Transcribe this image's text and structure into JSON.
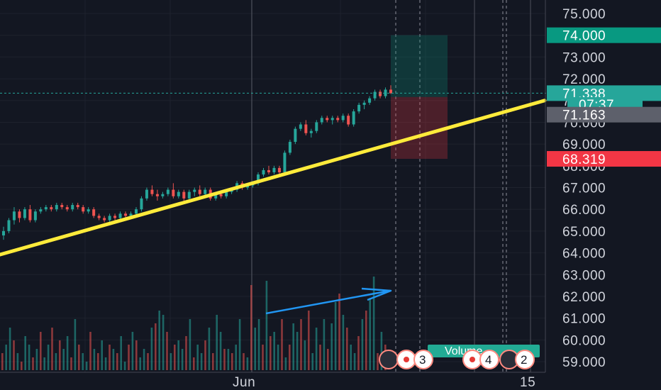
{
  "chart_data": {
    "type": "candlestick",
    "x_axis": {
      "labels": [
        "Jun",
        "15"
      ]
    },
    "y_axis": {
      "range": [
        58.6,
        75.6
      ],
      "ticks": [
        "59.000",
        "60.000",
        "61.000",
        "62.000",
        "63.000",
        "64.000",
        "65.000",
        "66.000",
        "67.000",
        "68.000",
        "69.000",
        "70.000",
        "71.000",
        "72.000",
        "73.000",
        "74.000",
        "75.000"
      ]
    },
    "price_tags": [
      {
        "label": "74.000",
        "value": 74.0,
        "color": "#089981"
      },
      {
        "label": "71.338",
        "value": 71.338,
        "color": "#26a69a"
      },
      {
        "label": "07:37",
        "value": 70.83,
        "color": "#26a69a"
      },
      {
        "label": "71.163",
        "value": 70.35,
        "color": "#5d606b"
      },
      {
        "label": "68.319",
        "value": 68.319,
        "color": "#f23645"
      }
    ],
    "current_price": 71.338,
    "candles_ohlc": [
      [
        64.8,
        65.2,
        64.6,
        65.0
      ],
      [
        65.0,
        65.6,
        64.9,
        65.5
      ],
      [
        65.5,
        66.1,
        65.3,
        65.9
      ],
      [
        65.9,
        66.0,
        65.4,
        65.6
      ],
      [
        65.6,
        66.1,
        65.5,
        66.0
      ],
      [
        66.0,
        66.2,
        65.4,
        65.5
      ],
      [
        65.5,
        66.0,
        65.4,
        65.9
      ],
      [
        65.9,
        66.1,
        65.8,
        66.0
      ],
      [
        66.0,
        66.2,
        65.9,
        66.1
      ],
      [
        66.1,
        66.2,
        65.9,
        66.0
      ],
      [
        66.0,
        66.3,
        65.9,
        66.2
      ],
      [
        66.2,
        66.3,
        66.0,
        66.1
      ],
      [
        66.1,
        66.2,
        65.9,
        66.0
      ],
      [
        66.0,
        66.3,
        65.9,
        66.2
      ],
      [
        66.2,
        66.3,
        66.0,
        66.1
      ],
      [
        66.1,
        66.2,
        65.8,
        65.9
      ],
      [
        65.9,
        66.1,
        65.8,
        66.0
      ],
      [
        66.0,
        66.1,
        65.6,
        65.7
      ],
      [
        65.7,
        65.8,
        65.5,
        65.6
      ],
      [
        65.6,
        65.7,
        65.4,
        65.5
      ],
      [
        65.5,
        65.8,
        65.4,
        65.7
      ],
      [
        65.7,
        65.8,
        65.5,
        65.6
      ],
      [
        65.6,
        65.9,
        65.5,
        65.8
      ],
      [
        65.8,
        65.9,
        65.6,
        65.7
      ],
      [
        65.7,
        65.9,
        65.6,
        65.8
      ],
      [
        65.8,
        66.1,
        65.7,
        66.0
      ],
      [
        66.0,
        66.6,
        65.9,
        66.5
      ],
      [
        66.5,
        67.0,
        66.4,
        66.9
      ],
      [
        66.9,
        67.1,
        66.6,
        66.7
      ],
      [
        66.7,
        66.9,
        66.4,
        66.6
      ],
      [
        66.6,
        66.8,
        66.5,
        66.7
      ],
      [
        66.7,
        67.0,
        66.6,
        66.9
      ],
      [
        66.9,
        67.2,
        66.5,
        66.6
      ],
      [
        66.6,
        66.9,
        66.5,
        66.8
      ],
      [
        66.8,
        66.9,
        66.4,
        66.5
      ],
      [
        66.5,
        66.9,
        66.4,
        66.8
      ],
      [
        66.8,
        67.0,
        66.6,
        66.9
      ],
      [
        66.9,
        67.1,
        66.6,
        66.7
      ],
      [
        66.7,
        67.0,
        66.6,
        66.9
      ],
      [
        66.9,
        67.0,
        66.4,
        66.5
      ],
      [
        66.5,
        66.8,
        66.4,
        66.7
      ],
      [
        66.7,
        66.8,
        66.5,
        66.6
      ],
      [
        66.6,
        66.9,
        66.5,
        66.8
      ],
      [
        66.8,
        67.0,
        66.7,
        66.9
      ],
      [
        66.9,
        67.3,
        66.8,
        67.2
      ],
      [
        67.2,
        67.3,
        66.9,
        67.0
      ],
      [
        67.0,
        67.2,
        66.9,
        67.1
      ],
      [
        67.1,
        67.3,
        67.0,
        67.2
      ],
      [
        67.2,
        67.7,
        67.1,
        67.6
      ],
      [
        67.6,
        67.9,
        67.5,
        67.8
      ],
      [
        67.8,
        68.0,
        67.6,
        67.7
      ],
      [
        67.7,
        68.0,
        67.6,
        67.9
      ],
      [
        67.9,
        68.0,
        67.6,
        67.7
      ],
      [
        67.7,
        68.7,
        67.6,
        68.6
      ],
      [
        68.6,
        69.2,
        68.5,
        69.1
      ],
      [
        69.1,
        69.8,
        69.0,
        69.7
      ],
      [
        69.7,
        70.0,
        69.6,
        69.9
      ],
      [
        69.9,
        70.1,
        69.4,
        69.5
      ],
      [
        69.5,
        69.7,
        69.3,
        69.6
      ],
      [
        69.6,
        70.1,
        69.5,
        70.0
      ],
      [
        70.0,
        70.3,
        69.9,
        70.2
      ],
      [
        70.2,
        70.3,
        70.0,
        70.1
      ],
      [
        70.1,
        70.3,
        69.9,
        70.2
      ],
      [
        70.2,
        70.3,
        70.0,
        70.1
      ],
      [
        70.1,
        70.4,
        70.0,
        70.3
      ],
      [
        70.3,
        70.4,
        69.8,
        69.9
      ],
      [
        69.9,
        70.6,
        69.8,
        70.5
      ],
      [
        70.5,
        70.9,
        70.4,
        70.8
      ],
      [
        70.8,
        71.0,
        70.6,
        70.9
      ],
      [
        70.9,
        71.2,
        70.8,
        71.1
      ],
      [
        71.1,
        71.5,
        71.0,
        71.4
      ],
      [
        71.4,
        71.5,
        71.1,
        71.2
      ],
      [
        71.2,
        71.6,
        71.1,
        71.5
      ],
      [
        71.5,
        71.7,
        71.3,
        71.338
      ]
    ],
    "volume": [
      4,
      6,
      10,
      7,
      4,
      2,
      8,
      6,
      3,
      5,
      9,
      3,
      6,
      10,
      4,
      7,
      5,
      8,
      3,
      12,
      6,
      4,
      2,
      9,
      5,
      4,
      7,
      3,
      6,
      5,
      4,
      8,
      2,
      6,
      9,
      7,
      3,
      5,
      4,
      10,
      11,
      14,
      13,
      9,
      4,
      6,
      7,
      5,
      8,
      12,
      3,
      6,
      4,
      7,
      10,
      4,
      13,
      9,
      5,
      5,
      4,
      6,
      12,
      4,
      3,
      20,
      10,
      12,
      6,
      21,
      8,
      9,
      6,
      12,
      3,
      6,
      11,
      9,
      12,
      7,
      14,
      4,
      10,
      6,
      12,
      5,
      11,
      16,
      18,
      13,
      10,
      6,
      4,
      8,
      12,
      14,
      17,
      22,
      4,
      9,
      6
    ],
    "volume_colors": "alternating up/down",
    "trendline": {
      "color": "#ffeb3b",
      "from": [
        0,
        63.9
      ],
      "to": [
        1,
        71.0
      ]
    },
    "position_box": {
      "target": 74.0,
      "entry": 71.163,
      "stop": 68.319
    },
    "labels": [
      "Volume"
    ],
    "badges": [
      "3",
      "4",
      "2"
    ]
  }
}
